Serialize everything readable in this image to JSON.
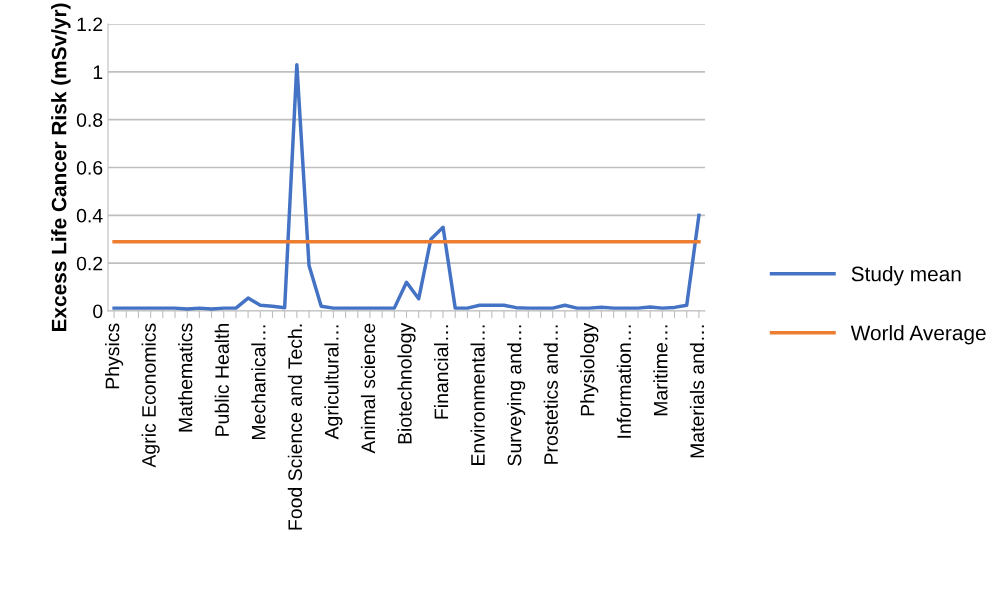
{
  "chart_data": {
    "type": "line",
    "ylabel": "Excess Life Cancer Risk (mSv/yr)",
    "categories": [
      "Physics",
      null,
      null,
      "Agric Economics",
      null,
      null,
      "Mathematics",
      null,
      null,
      "Public Health",
      null,
      null,
      "Mechanical…",
      null,
      null,
      "Food Science and Tech.",
      null,
      null,
      "Agricultural…",
      null,
      null,
      "Animal science",
      null,
      null,
      "Biotechnology",
      null,
      null,
      "Financial…",
      null,
      null,
      "Environmental…",
      null,
      null,
      "Surveying and…",
      null,
      null,
      "Prostetics and…",
      null,
      null,
      "Physiology",
      null,
      null,
      "Information…",
      null,
      null,
      "Maritime…",
      null,
      null,
      "Materials and…"
    ],
    "series": [
      {
        "name": "Study mean",
        "color": "#4472c4",
        "values": [
          0.012,
          0.012,
          0.012,
          0.012,
          0.012,
          0.012,
          0.008,
          0.012,
          0.008,
          0.012,
          0.012,
          0.054,
          0.024,
          0.02,
          0.014,
          1.03,
          0.19,
          0.02,
          0.012,
          0.012,
          0.012,
          0.012,
          0.012,
          0.012,
          0.12,
          0.051,
          0.3,
          0.35,
          0.012,
          0.012,
          0.024,
          0.024,
          0.024,
          0.014,
          0.012,
          0.012,
          0.012,
          0.024,
          0.012,
          0.012,
          0.016,
          0.012,
          0.012,
          0.012,
          0.017,
          0.012,
          0.015,
          0.024,
          0.4
        ]
      },
      {
        "name": "World Average",
        "color": "#ed7d31",
        "values": [
          0.29,
          0.29,
          0.29,
          0.29,
          0.29,
          0.29,
          0.29,
          0.29,
          0.29,
          0.29,
          0.29,
          0.29,
          0.29,
          0.29,
          0.29,
          0.29,
          0.29,
          0.29,
          0.29,
          0.29,
          0.29,
          0.29,
          0.29,
          0.29,
          0.29,
          0.29,
          0.29,
          0.29,
          0.29,
          0.29,
          0.29,
          0.29,
          0.29,
          0.29,
          0.29,
          0.29,
          0.29,
          0.29,
          0.29,
          0.29,
          0.29,
          0.29,
          0.29,
          0.29,
          0.29,
          0.29,
          0.29,
          0.29,
          0.29
        ]
      }
    ],
    "ylim": [
      0,
      1.2
    ],
    "yticks": [
      0,
      0.2,
      0.4,
      0.6,
      0.8,
      1,
      1.2
    ],
    "grid": "y",
    "legend": "right",
    "marker": "none",
    "line_style": "solid"
  }
}
